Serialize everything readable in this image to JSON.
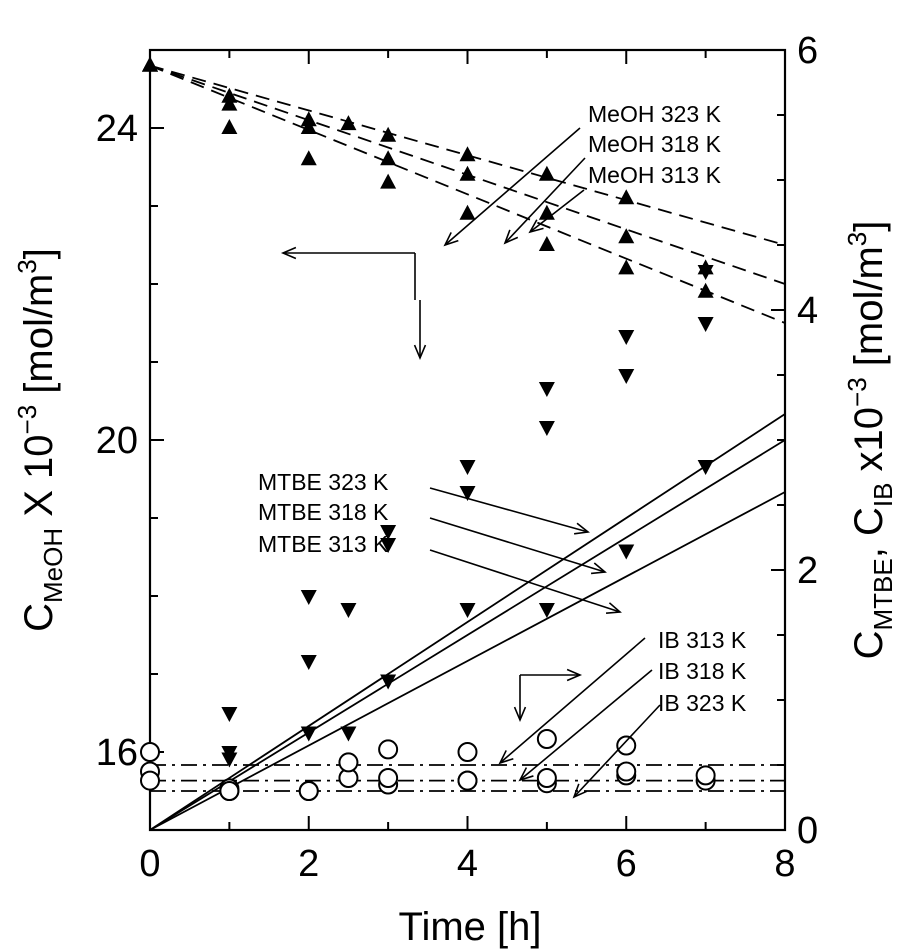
{
  "chart_data": {
    "type": "scatter",
    "xlabel": "Time [h]",
    "xlim": [
      0,
      8
    ],
    "x_ticks": [
      "0",
      "2",
      "4",
      "6",
      "8"
    ],
    "ylabel_left": {
      "base": "C",
      "sub": "MeOH",
      "rest": " X 10",
      "sup": "−3",
      "unit": " [mol/m",
      "unit_sup": "3",
      "close": "]"
    },
    "ylim_left": [
      15,
      25
    ],
    "y_ticks_left": [
      "16",
      "20",
      "24"
    ],
    "ylabel_right": {
      "base1": "C",
      "sub1": "MTBE",
      "mid": ", C",
      "sub2": "IB",
      "rest": " x10",
      "sup": "−3",
      "unit": " [mol/m",
      "unit_sup": "3",
      "close": "]"
    },
    "ylim_right": [
      0,
      6
    ],
    "y_ticks_right": [
      "0",
      "2",
      "4",
      "6"
    ],
    "series": [
      {
        "name": "MeOH 323 K",
        "axis": "left",
        "marker": "triangle-up",
        "line": "dashed",
        "points": [
          [
            0,
            24.8
          ],
          [
            1,
            24.0
          ],
          [
            2,
            23.6
          ],
          [
            3,
            23.3
          ],
          [
            4,
            22.9
          ],
          [
            5,
            22.5
          ],
          [
            6,
            22.2
          ],
          [
            7,
            21.9
          ]
        ],
        "fit": [
          [
            0,
            24.8
          ],
          [
            8,
            21.5
          ]
        ]
      },
      {
        "name": "MeOH 318 K",
        "axis": "left",
        "marker": "triangle-up",
        "line": "dashed",
        "points": [
          [
            0,
            24.8
          ],
          [
            1,
            24.3
          ],
          [
            2,
            24.0
          ],
          [
            3,
            23.6
          ],
          [
            4,
            23.4
          ],
          [
            5,
            22.9
          ],
          [
            6,
            22.6
          ],
          [
            7,
            22.2
          ]
        ],
        "fit": [
          [
            0,
            24.8
          ],
          [
            8,
            22.0
          ]
        ]
      },
      {
        "name": "MeOH 313 K",
        "axis": "left",
        "marker": "triangle-up",
        "line": "dashed",
        "points": [
          [
            0,
            24.8
          ],
          [
            1,
            24.4
          ],
          [
            2,
            24.1
          ],
          [
            2.5,
            24.05
          ],
          [
            3,
            23.9
          ],
          [
            4,
            23.65
          ],
          [
            5,
            23.4
          ],
          [
            6,
            23.1
          ]
        ],
        "fit": [
          [
            0,
            24.8
          ],
          [
            8,
            22.5
          ]
        ]
      },
      {
        "name": "MTBE 323 K",
        "axis": "right",
        "marker": "triangle-down",
        "line": "solid",
        "points": [
          [
            1,
            0.9
          ],
          [
            2,
            1.8
          ],
          [
            3,
            2.3
          ],
          [
            4,
            2.8
          ],
          [
            5,
            3.4
          ],
          [
            6,
            3.8
          ],
          [
            7,
            4.3
          ]
        ],
        "fit": [
          [
            0,
            0
          ],
          [
            8,
            3.2
          ]
        ]
      },
      {
        "name": "MTBE 318 K",
        "axis": "right",
        "marker": "triangle-down",
        "line": "solid",
        "points": [
          [
            1,
            0.6
          ],
          [
            2,
            1.3
          ],
          [
            2.5,
            1.7
          ],
          [
            3,
            2.2
          ],
          [
            4,
            2.6
          ],
          [
            5,
            3.1
          ],
          [
            6,
            3.5
          ],
          [
            7,
            3.9
          ]
        ],
        "fit": [
          [
            0,
            0
          ],
          [
            8,
            3.0
          ]
        ]
      },
      {
        "name": "MTBE 313 K",
        "axis": "right",
        "marker": "triangle-down",
        "line": "solid",
        "points": [
          [
            1,
            0.55
          ],
          [
            2,
            0.75
          ],
          [
            2.5,
            0.75
          ],
          [
            3,
            1.15
          ],
          [
            4,
            1.7
          ],
          [
            5,
            1.7
          ],
          [
            6,
            2.15
          ],
          [
            7,
            2.8
          ]
        ],
        "fit": [
          [
            0,
            0
          ],
          [
            8,
            2.6
          ]
        ]
      },
      {
        "name": "IB 313 K",
        "axis": "right",
        "marker": "circle",
        "line": "dashdot",
        "points": [
          [
            0,
            0.6
          ],
          [
            1,
            0.3
          ],
          [
            2,
            0.3
          ],
          [
            2.5,
            0.4
          ],
          [
            3,
            0.35
          ],
          [
            4,
            0.38
          ],
          [
            5,
            0.36
          ],
          [
            6,
            0.42
          ],
          [
            7,
            0.38
          ]
        ],
        "fit": [
          [
            0,
            0.3
          ],
          [
            8,
            0.3
          ]
        ]
      },
      {
        "name": "IB 318 K",
        "axis": "right",
        "marker": "circle",
        "line": "dashdot",
        "points": [
          [
            0,
            0.45
          ],
          [
            1,
            0.32
          ],
          [
            2,
            0.3
          ],
          [
            3,
            0.4
          ],
          [
            4,
            0.38
          ],
          [
            5,
            0.4
          ],
          [
            6,
            0.45
          ],
          [
            7,
            0.42
          ]
        ],
        "fit": [
          [
            0,
            0.38
          ],
          [
            8,
            0.38
          ]
        ]
      },
      {
        "name": "IB 323 K",
        "axis": "right",
        "marker": "circle",
        "line": "dashdot",
        "points": [
          [
            0,
            0.38
          ],
          [
            1,
            0.3
          ],
          [
            2.5,
            0.52
          ],
          [
            3,
            0.62
          ],
          [
            4,
            0.6
          ],
          [
            5,
            0.7
          ],
          [
            6,
            0.65
          ]
        ],
        "fit": [
          [
            0,
            0.5
          ],
          [
            8,
            0.5
          ]
        ]
      }
    ],
    "annotations": [
      "MeOH 323 K",
      "MeOH 318 K",
      "MeOH 313 K",
      "MTBE 323 K",
      "MTBE 318 K",
      "MTBE 313 K",
      "IB 313 K",
      "IB 318 K",
      "IB 323 K"
    ],
    "grid": false,
    "legend": "none"
  }
}
